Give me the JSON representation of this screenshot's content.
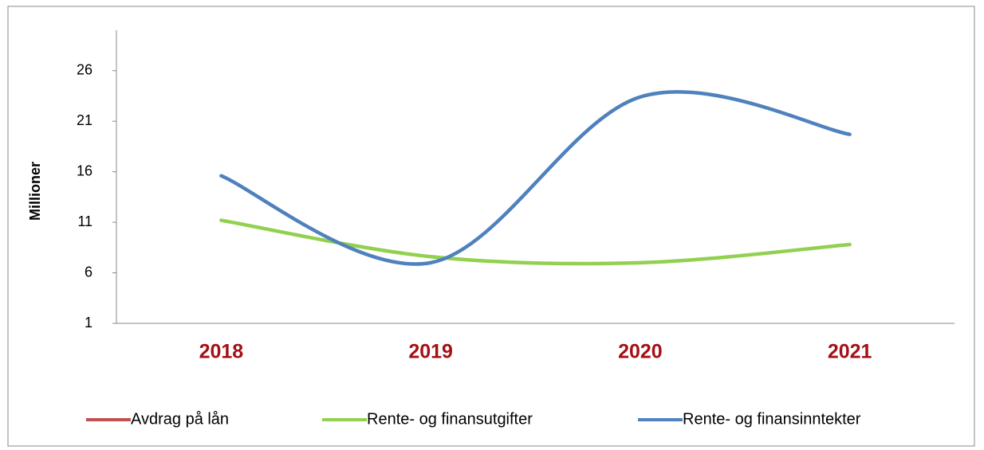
{
  "chart_data": {
    "type": "line",
    "y_label": "Millioner",
    "categories": [
      "2018",
      "2019",
      "2020",
      "2021"
    ],
    "series": [
      {
        "name": "Avdrag på lån",
        "color": "#c0504d",
        "values": [
          null,
          null,
          null,
          null
        ]
      },
      {
        "name": "Rente- og finansutgifter",
        "color": "#92d050",
        "values": [
          11.2,
          7.6,
          7.0,
          8.8
        ]
      },
      {
        "name": "Rente- og finansinntekter",
        "color": "#4f81bd",
        "values": [
          15.6,
          7.0,
          23.4,
          19.7
        ]
      }
    ],
    "ylim": [
      1,
      30
    ],
    "yticks": [
      1,
      6,
      11,
      16,
      21,
      26
    ],
    "smooth": true
  }
}
